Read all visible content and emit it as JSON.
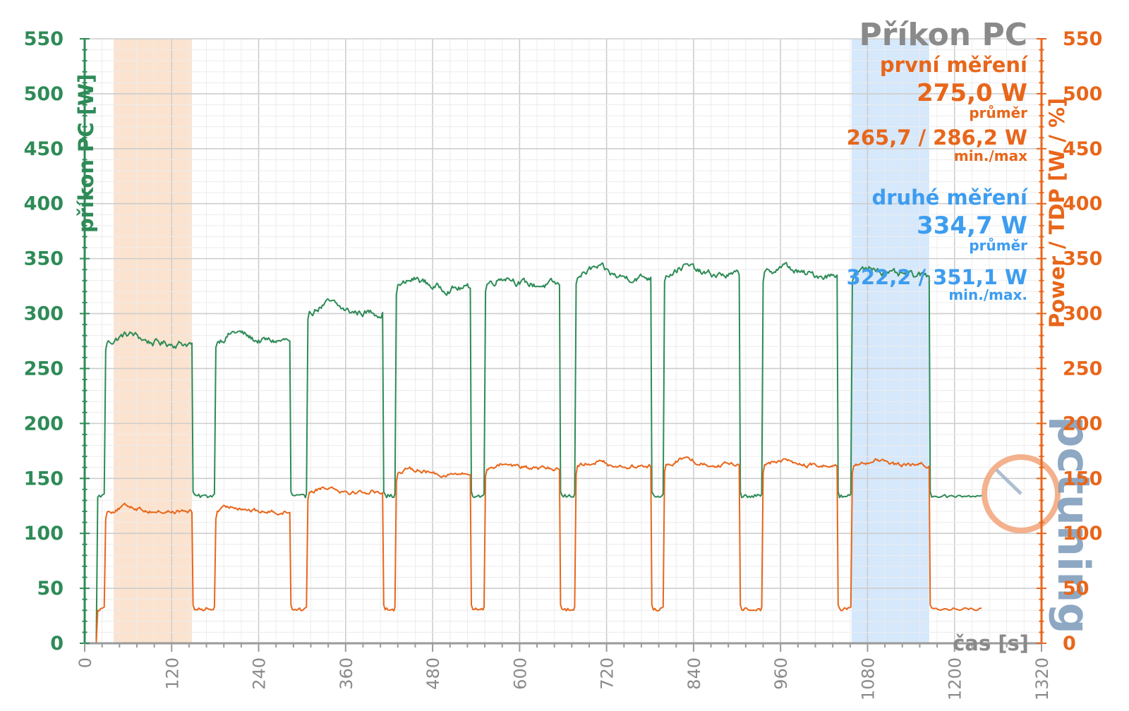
{
  "chart_data": {
    "type": "line",
    "title": "Příkon PC",
    "xlabel": "čas [s]",
    "ylabel_left": "příkon PC [W]",
    "ylabel_right": "Power / TDP [W / %]",
    "xlim": [
      0,
      1320
    ],
    "ylim": [
      0,
      550
    ],
    "x_ticks": [
      "0",
      "120",
      "240",
      "360",
      "480",
      "600",
      "720",
      "840",
      "960",
      "1080",
      "1200",
      "1320"
    ],
    "y_ticks": [
      "0",
      "50",
      "100",
      "150",
      "200",
      "250",
      "300",
      "350",
      "400",
      "450",
      "500",
      "550"
    ],
    "grid": true,
    "highlight_regions": [
      {
        "name": "první měření",
        "x": [
          40,
          148
        ],
        "color": "#fbe3cf"
      },
      {
        "name": "druhé měření",
        "x": [
          1058,
          1165
        ],
        "color": "#d6e8fb"
      }
    ],
    "series": [
      {
        "name": "příkon PC",
        "color": "#2e8b57",
        "segments": [
          {
            "start": 28,
            "end": 148,
            "level": 275
          },
          {
            "start": 180,
            "end": 283,
            "level": 277
          },
          {
            "start": 307,
            "end": 411,
            "level": 303
          },
          {
            "start": 429,
            "end": 532,
            "level": 325
          },
          {
            "start": 552,
            "end": 655,
            "level": 328
          },
          {
            "start": 677,
            "end": 781,
            "level": 335
          },
          {
            "start": 799,
            "end": 903,
            "level": 337
          },
          {
            "start": 935,
            "end": 1038,
            "level": 337
          },
          {
            "start": 1058,
            "end": 1165,
            "level": 336
          }
        ],
        "idle_level": 135,
        "idle_after": 134,
        "start_level": 0
      },
      {
        "name": "Power / TDP",
        "color": "#e8661a",
        "segments": [
          {
            "start": 28,
            "end": 148,
            "level": 121
          },
          {
            "start": 180,
            "end": 283,
            "level": 121
          },
          {
            "start": 307,
            "end": 411,
            "level": 139
          },
          {
            "start": 429,
            "end": 532,
            "level": 155
          },
          {
            "start": 552,
            "end": 655,
            "level": 160
          },
          {
            "start": 677,
            "end": 781,
            "level": 162
          },
          {
            "start": 799,
            "end": 903,
            "level": 164
          },
          {
            "start": 935,
            "end": 1038,
            "level": 163
          },
          {
            "start": 1058,
            "end": 1165,
            "level": 163
          }
        ],
        "idle_level": 32,
        "idle_after": 31,
        "start_level": 0
      }
    ],
    "series_end_x": 1240
  },
  "annotations": {
    "first": {
      "label": "první měření",
      "avg": "275,0 W",
      "avg_label": "průměr",
      "minmax": "265,7 / 286,2 W",
      "minmax_label": "min./max",
      "color": "#e8661a"
    },
    "second": {
      "label": "druhé měření",
      "avg": "334,7 W",
      "avg_label": "průměr",
      "minmax": "322,2 / 351,1 W",
      "minmax_label": "min./max.",
      "color": "#3d9df0"
    }
  },
  "watermark": "pctuning"
}
